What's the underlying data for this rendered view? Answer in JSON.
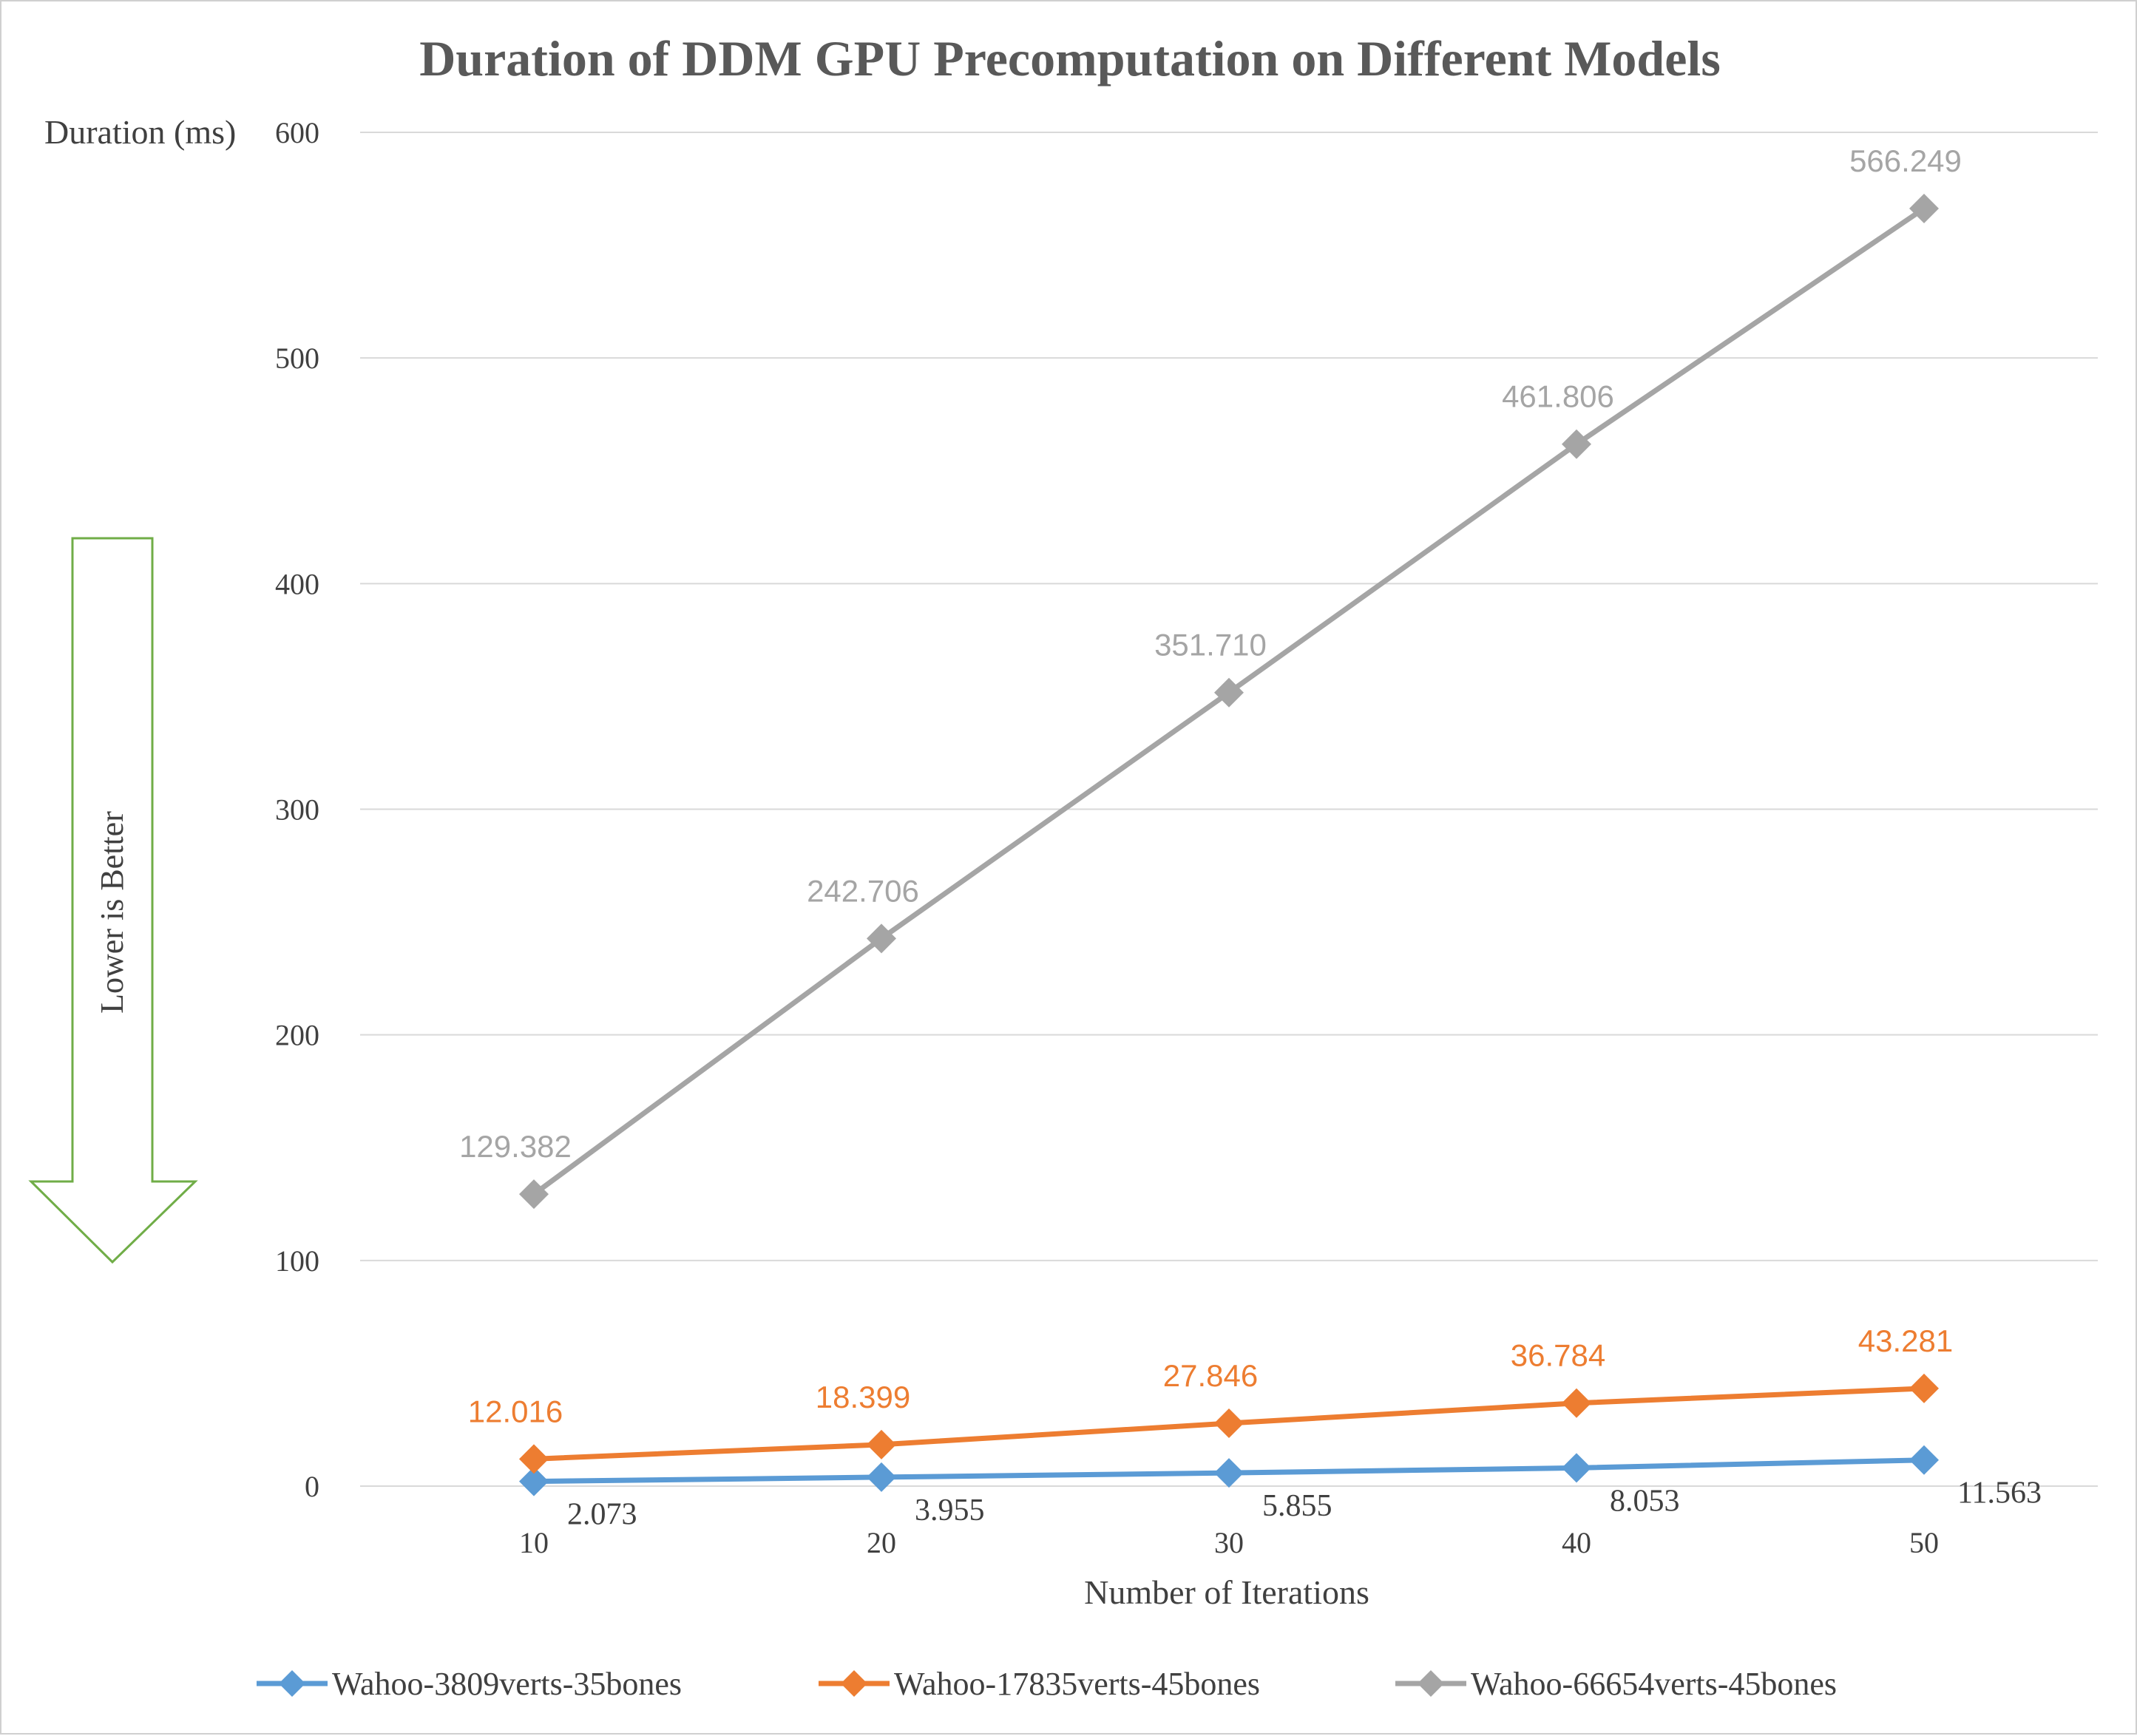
{
  "chart_data": {
    "type": "line",
    "title": "Duration of DDM GPU Precomputation on Different Models",
    "xlabel": "Number of Iterations",
    "ylabel": "Duration (ms)",
    "x": [
      10,
      20,
      30,
      40,
      50
    ],
    "x_tick_labels": [
      "10",
      "20",
      "30",
      "40",
      "50"
    ],
    "y_ticks": [
      0,
      100,
      200,
      300,
      400,
      500,
      600
    ],
    "y_tick_labels": [
      "0",
      "100",
      "200",
      "300",
      "400",
      "500",
      "600"
    ],
    "ylim": [
      0,
      600
    ],
    "grid": "horizontal",
    "legend_position": "bottom",
    "series": [
      {
        "name": "Wahoo-3809verts-35bones",
        "color": "#5B9BD5",
        "values": [
          2.073,
          3.955,
          5.855,
          8.053,
          11.563
        ],
        "value_labels": [
          "2.073",
          "3.955",
          "5.855",
          "8.053",
          "11.563"
        ],
        "label_position": "below-right"
      },
      {
        "name": "Wahoo-17835verts-45bones",
        "color": "#ED7D31",
        "values": [
          12.016,
          18.399,
          27.846,
          36.784,
          43.281
        ],
        "value_labels": [
          "12.016",
          "18.399",
          "27.846",
          "36.784",
          "43.281"
        ],
        "label_position": "above-left"
      },
      {
        "name": "Wahoo-66654verts-45bones",
        "color": "#A5A5A5",
        "values": [
          129.382,
          242.706,
          351.71,
          461.806,
          566.249
        ],
        "value_labels": [
          "129.382",
          "242.706",
          "351.710",
          "461.806",
          "566.249"
        ],
        "label_position": "above-left"
      }
    ],
    "annotation": {
      "text": "Lower is Better",
      "shape": "down-arrow",
      "color": "#70AD47"
    },
    "gridline_color": "#D9D9D9"
  }
}
